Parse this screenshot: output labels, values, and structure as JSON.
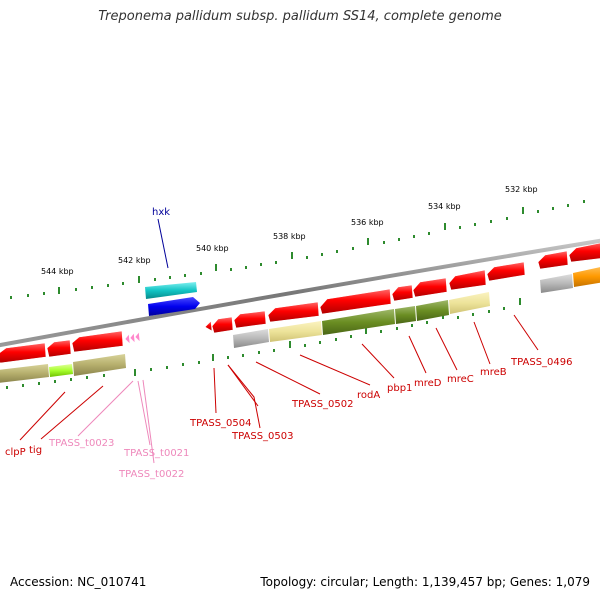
{
  "title": "Treponema pallidum subsp. pallidum SS14, complete genome",
  "footer": {
    "accession": "Accession: NC_010741",
    "topology": "Topology: circular; Length: 1,139,457 bp; Genes: 1,079"
  },
  "ruler": [
    {
      "label": "544 kbp"
    },
    {
      "label": "542 kbp"
    },
    {
      "label": "540 kbp"
    },
    {
      "label": "538 kbp"
    },
    {
      "label": "536 kbp"
    },
    {
      "label": "534 kbp"
    },
    {
      "label": "532 kbp"
    }
  ],
  "genes": [
    {
      "label": "hxk",
      "color": "#000099"
    },
    {
      "label": "clpP",
      "color": "#cc0000"
    },
    {
      "label": "tig",
      "color": "#cc0000"
    },
    {
      "label": "TPASS_t0023",
      "color": "#ee88bb"
    },
    {
      "label": "TPASS_t0021",
      "color": "#ee88bb"
    },
    {
      "label": "TPASS_t0022",
      "color": "#ee88bb"
    },
    {
      "label": "TPASS_0504",
      "color": "#cc0000"
    },
    {
      "label": "TPASS_0503",
      "color": "#cc0000"
    },
    {
      "label": "TPASS_0502",
      "color": "#cc0000"
    },
    {
      "label": "rodA",
      "color": "#cc0000"
    },
    {
      "label": "pbp1",
      "color": "#cc0000"
    },
    {
      "label": "mreD",
      "color": "#cc0000"
    },
    {
      "label": "mreC",
      "color": "#cc0000"
    },
    {
      "label": "mreB",
      "color": "#cc0000"
    },
    {
      "label": "TPASS_0496",
      "color": "#cc0000"
    }
  ]
}
